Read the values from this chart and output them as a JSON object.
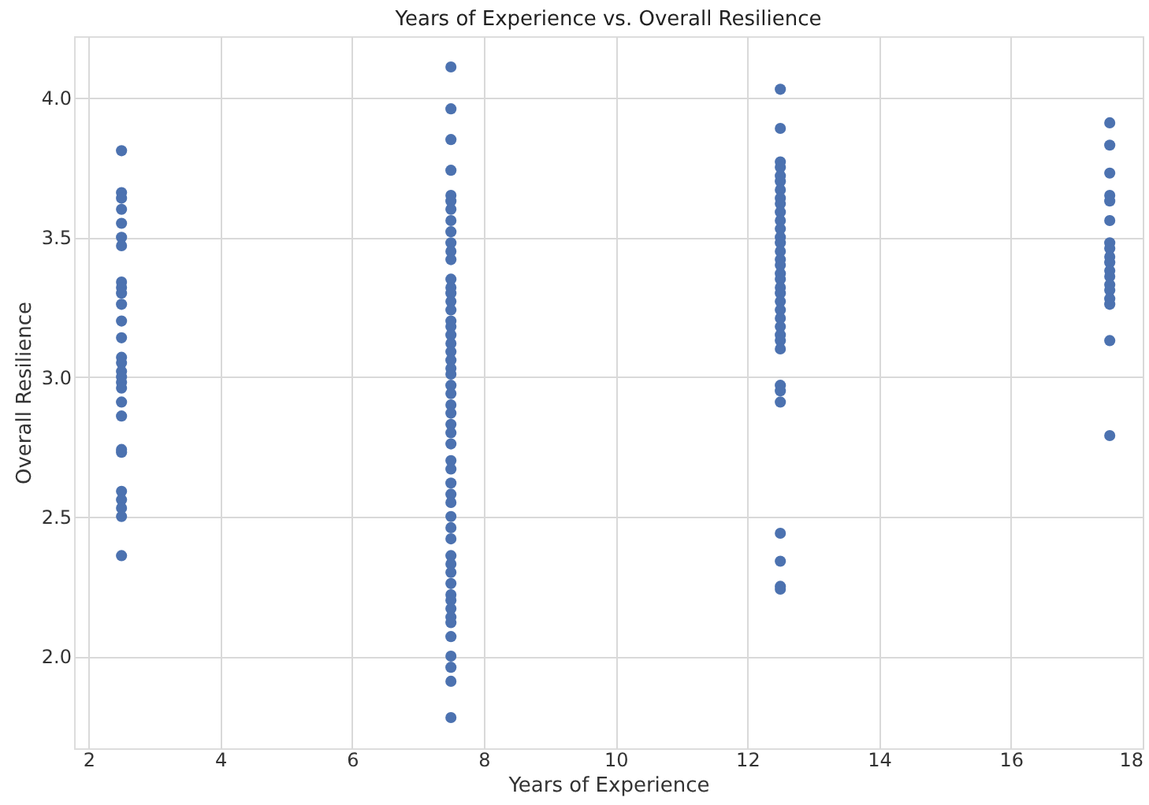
{
  "chart_data": {
    "type": "scatter",
    "title": "Years of Experience vs. Overall Resilience",
    "xlabel": "Years of Experience",
    "ylabel": "Overall Resilience",
    "xlim": [
      1.78,
      18.0
    ],
    "xticks": [
      2,
      4,
      6,
      8,
      10,
      12,
      14,
      16,
      18
    ],
    "ylim": [
      1.67,
      4.22
    ],
    "yticks": [
      {
        "value": 2,
        "label": "2.0"
      },
      {
        "value": 2.5,
        "label": "2.5"
      },
      {
        "value": 3,
        "label": "3.0"
      },
      {
        "value": 3.5,
        "label": "3.5"
      },
      {
        "value": 4,
        "label": "4.0"
      }
    ],
    "grid": true,
    "marker": "circle",
    "series": [
      {
        "color": "#4c72b0",
        "x": [
          2.5,
          2.5,
          2.5,
          2.5,
          2.5,
          2.5,
          2.5,
          2.5,
          2.5,
          2.5,
          2.5,
          2.5,
          2.5,
          2.5,
          2.5,
          2.5,
          2.5,
          2.5,
          2.5,
          2.5,
          2.5,
          2.5,
          2.5,
          2.5,
          2.5,
          2.5,
          2.5,
          2.5,
          7.5,
          7.5,
          7.5,
          7.5,
          7.5,
          7.5,
          7.5,
          7.5,
          7.5,
          7.5,
          7.5,
          7.5,
          7.5,
          7.5,
          7.5,
          7.5,
          7.5,
          7.5,
          7.5,
          7.5,
          7.5,
          7.5,
          7.5,
          7.5,
          7.5,
          7.5,
          7.5,
          7.5,
          7.5,
          7.5,
          7.5,
          7.5,
          7.5,
          7.5,
          7.5,
          7.5,
          7.5,
          7.5,
          7.5,
          7.5,
          7.5,
          7.5,
          7.5,
          7.5,
          7.5,
          7.5,
          7.5,
          7.5,
          7.5,
          7.5,
          7.5,
          7.5,
          7.5,
          7.5,
          12.5,
          12.5,
          12.5,
          12.5,
          12.5,
          12.5,
          12.5,
          12.5,
          12.5,
          12.5,
          12.5,
          12.5,
          12.5,
          12.5,
          12.5,
          12.5,
          12.5,
          12.5,
          12.5,
          12.5,
          12.5,
          12.5,
          12.5,
          12.5,
          12.5,
          12.5,
          12.5,
          12.5,
          12.5,
          12.5,
          12.5,
          12.5,
          12.5,
          12.5,
          12.5,
          17.5,
          17.5,
          17.5,
          17.5,
          17.5,
          17.5,
          17.5,
          17.5,
          17.5,
          17.5,
          17.5,
          17.5,
          17.5,
          17.5,
          17.5,
          17.5,
          17.5,
          17.5
        ],
        "values": [
          3.81,
          3.66,
          3.64,
          3.6,
          3.55,
          3.5,
          3.47,
          3.34,
          3.32,
          3.3,
          3.26,
          3.2,
          3.14,
          3.07,
          3.05,
          3.02,
          3.0,
          2.98,
          2.96,
          2.91,
          2.86,
          2.74,
          2.73,
          2.59,
          2.56,
          2.53,
          2.5,
          2.36,
          4.11,
          3.96,
          3.85,
          3.74,
          3.65,
          3.63,
          3.6,
          3.56,
          3.52,
          3.48,
          3.45,
          3.42,
          3.35,
          3.32,
          3.3,
          3.27,
          3.24,
          3.2,
          3.18,
          3.15,
          3.12,
          3.09,
          3.06,
          3.03,
          3.01,
          2.97,
          2.94,
          2.9,
          2.87,
          2.83,
          2.8,
          2.76,
          2.7,
          2.67,
          2.62,
          2.58,
          2.55,
          2.5,
          2.46,
          2.42,
          2.36,
          2.33,
          2.3,
          2.26,
          2.22,
          2.2,
          2.17,
          2.14,
          2.12,
          2.07,
          2.0,
          1.96,
          1.91,
          1.78,
          4.03,
          3.89,
          3.77,
          3.75,
          3.72,
          3.7,
          3.67,
          3.64,
          3.62,
          3.59,
          3.56,
          3.53,
          3.5,
          3.48,
          3.45,
          3.42,
          3.4,
          3.37,
          3.35,
          3.32,
          3.3,
          3.27,
          3.24,
          3.21,
          3.18,
          3.15,
          3.13,
          3.1,
          2.97,
          2.95,
          2.91,
          2.44,
          2.34,
          2.25,
          2.24,
          3.91,
          3.83,
          3.73,
          3.65,
          3.63,
          3.56,
          3.48,
          3.46,
          3.43,
          3.41,
          3.38,
          3.36,
          3.33,
          3.31,
          3.28,
          3.26,
          3.13,
          2.79
        ]
      }
    ]
  }
}
